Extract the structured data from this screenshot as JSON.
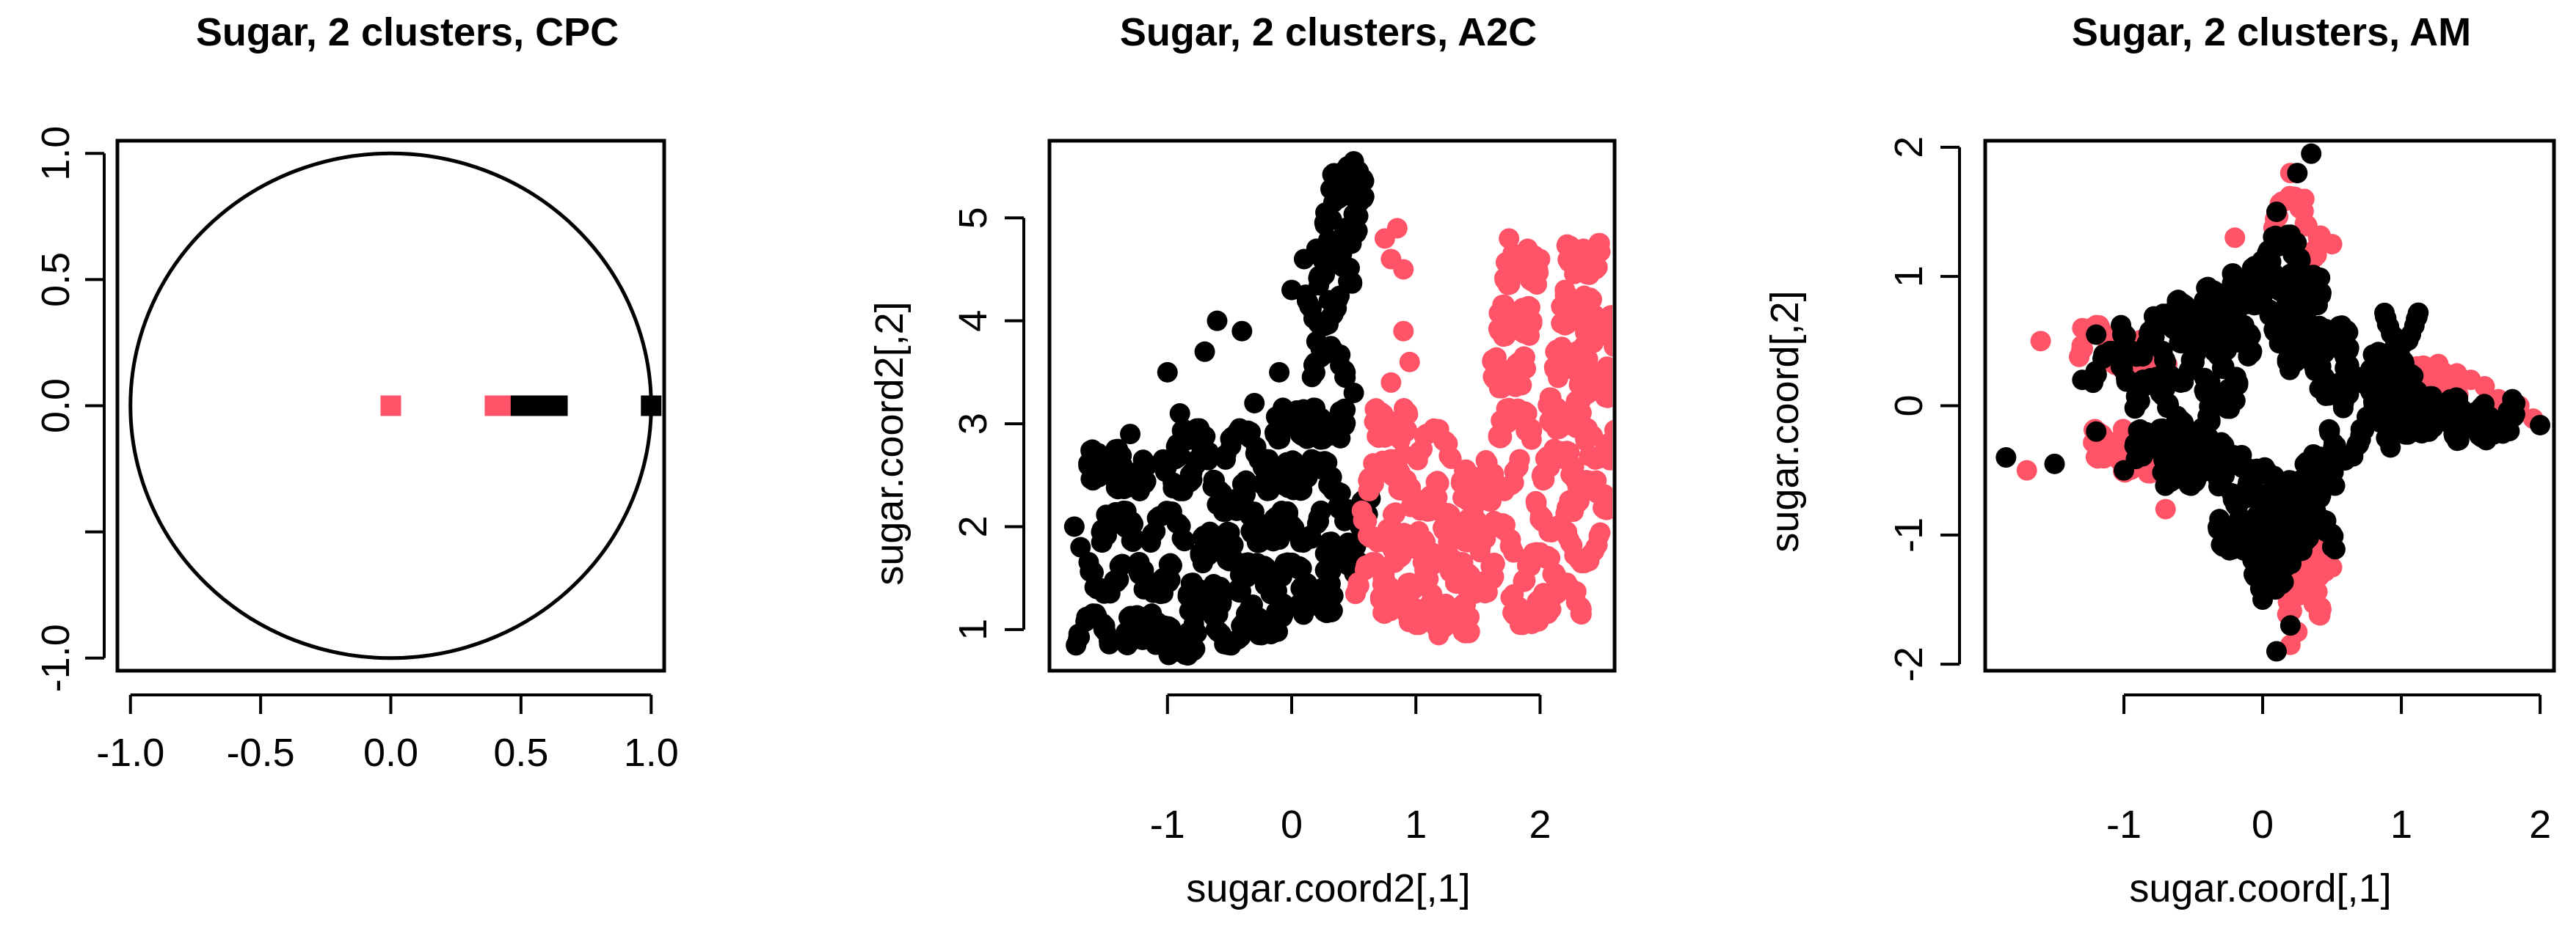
{
  "colors": {
    "cluster1": "#FF5468",
    "cluster2": "#000000"
  },
  "chart_data": [
    {
      "type": "scatter",
      "title": "Sugar, 2 clusters, CPC",
      "xlabel": "",
      "ylabel": "",
      "xlim": [
        -1.05,
        1.05
      ],
      "ylim": [
        -1.05,
        1.05
      ],
      "xticks": [
        -1.0,
        -0.5,
        0.0,
        0.5,
        1.0
      ],
      "xtick_labels": [
        "-1.0",
        "-0.5",
        "0.0",
        "0.5",
        "1.0"
      ],
      "yticks": [
        -1.0,
        -0.5,
        0.0,
        0.5,
        1.0
      ],
      "ytick_labels": [
        "-1.0",
        "",
        "0.0",
        "0.5",
        "1.0"
      ],
      "grid": false,
      "unit_circle": true,
      "series": [
        {
          "color": "#FF5468",
          "marker": "square",
          "points": [
            [
              0.0,
              0.0
            ]
          ],
          "dense": [
            [
              0.4,
              0.0
            ],
            [
              0.42,
              0.0
            ],
            [
              0.44,
              0.0
            ],
            [
              0.46,
              0.0
            ],
            [
              0.48,
              0.0
            ],
            [
              0.5,
              0.0
            ]
          ]
        },
        {
          "color": "#000000",
          "marker": "square",
          "points": [
            [
              1.0,
              0.0
            ]
          ],
          "dense": [
            [
              0.5,
              0.0
            ],
            [
              0.52,
              0.0
            ],
            [
              0.54,
              0.0
            ],
            [
              0.56,
              0.0
            ],
            [
              0.58,
              0.0
            ],
            [
              0.6,
              0.0
            ],
            [
              0.62,
              0.0
            ],
            [
              0.64,
              0.0
            ]
          ]
        }
      ]
    },
    {
      "type": "scatter",
      "title": "Sugar, 2 clusters, A2C",
      "xlabel": "sugar.coord2[,1]",
      "ylabel": "sugar.coord2[,2]",
      "xlim": [
        -1.95,
        2.6
      ],
      "ylim": [
        0.6,
        5.75
      ],
      "xticks": [
        -1,
        0,
        1,
        2
      ],
      "xtick_labels": [
        "-1",
        "0",
        "1",
        "2"
      ],
      "yticks": [
        1,
        2,
        3,
        4,
        5
      ],
      "ytick_labels": [
        "1",
        "2",
        "3",
        "4",
        "5"
      ],
      "grid": false,
      "series": [
        {
          "color": "#000000",
          "marker": "circle",
          "points": [
            [
              -1.75,
              2.0
            ],
            [
              -1.6,
              2.45
            ],
            [
              -1.5,
              2.6
            ],
            [
              -1.7,
              1.8
            ],
            [
              -1.2,
              0.9
            ],
            [
              -0.8,
              0.8
            ],
            [
              -1.0,
              3.5
            ],
            [
              -0.7,
              3.7
            ],
            [
              -0.6,
              4.0
            ],
            [
              -0.4,
              3.9
            ],
            [
              -0.3,
              3.2
            ],
            [
              -0.1,
              3.5
            ],
            [
              0.0,
              4.3
            ],
            [
              0.1,
              4.6
            ],
            [
              0.2,
              4.7
            ],
            [
              0.3,
              5.0
            ],
            [
              0.35,
              5.2
            ],
            [
              0.4,
              5.4
            ],
            [
              0.45,
              5.5
            ],
            [
              0.5,
              5.55
            ],
            [
              0.3,
              4.2
            ],
            [
              0.2,
              3.8
            ],
            [
              0.1,
              3.0
            ],
            [
              0.5,
              3.3
            ],
            [
              0.55,
              2.0
            ],
            [
              0.55,
              1.6
            ],
            [
              -1.3,
              2.9
            ],
            [
              -0.9,
              3.1
            ]
          ],
          "dense": [
            [
              -1.6,
              1.0
            ],
            [
              -1.5,
              1.5
            ],
            [
              -1.4,
              2.0
            ],
            [
              -1.3,
              2.5
            ],
            [
              -1.5,
              2.6
            ],
            [
              -1.2,
              1.0
            ],
            [
              -1.1,
              1.5
            ],
            [
              -1.0,
              2.0
            ],
            [
              -0.9,
              2.5
            ],
            [
              -0.8,
              2.8
            ],
            [
              -0.9,
              0.9
            ],
            [
              -0.7,
              1.3
            ],
            [
              -0.6,
              1.8
            ],
            [
              -0.5,
              2.3
            ],
            [
              -0.4,
              2.8
            ],
            [
              -0.5,
              1.0
            ],
            [
              -0.3,
              1.5
            ],
            [
              -0.2,
              2.0
            ],
            [
              -0.1,
              2.5
            ],
            [
              0.0,
              3.0
            ],
            [
              -0.2,
              1.1
            ],
            [
              0.0,
              1.5
            ],
            [
              0.1,
              2.0
            ],
            [
              0.2,
              2.5
            ],
            [
              0.3,
              3.0
            ],
            [
              0.2,
              1.3
            ],
            [
              0.4,
              1.7
            ],
            [
              0.5,
              2.2
            ],
            [
              0.3,
              3.6
            ],
            [
              0.25,
              4.1
            ],
            [
              0.35,
              4.5
            ],
            [
              0.4,
              4.9
            ],
            [
              0.45,
              5.3
            ]
          ]
        },
        {
          "color": "#FF5468",
          "marker": "circle",
          "points": [
            [
              0.75,
              4.8
            ],
            [
              0.8,
              4.6
            ],
            [
              0.85,
              4.9
            ],
            [
              0.9,
              4.5
            ],
            [
              0.8,
              3.4
            ],
            [
              0.85,
              3.0
            ],
            [
              0.95,
              3.6
            ],
            [
              0.9,
              3.9
            ],
            [
              0.9,
              2.7
            ],
            [
              1.75,
              4.8
            ],
            [
              1.9,
              4.7
            ],
            [
              2.0,
              4.6
            ],
            [
              2.35,
              4.7
            ],
            [
              2.4,
              4.5
            ],
            [
              2.2,
              4.3
            ]
          ],
          "dense": [
            [
              0.65,
              1.5
            ],
            [
              0.7,
              2.0
            ],
            [
              0.75,
              2.5
            ],
            [
              0.8,
              3.0
            ],
            [
              0.85,
              1.3
            ],
            [
              0.95,
              1.8
            ],
            [
              1.05,
              2.3
            ],
            [
              1.15,
              2.8
            ],
            [
              1.0,
              1.2
            ],
            [
              1.2,
              1.6
            ],
            [
              1.35,
              2.0
            ],
            [
              1.5,
              2.4
            ],
            [
              1.3,
              1.1
            ],
            [
              1.5,
              1.5
            ],
            [
              1.65,
              1.9
            ],
            [
              1.7,
              2.5
            ],
            [
              1.8,
              3.0
            ],
            [
              1.75,
              3.5
            ],
            [
              1.8,
              4.0
            ],
            [
              1.85,
              4.5
            ],
            [
              1.9,
              1.2
            ],
            [
              2.0,
              1.6
            ],
            [
              2.1,
              2.1
            ],
            [
              2.15,
              2.6
            ],
            [
              2.2,
              3.1
            ],
            [
              2.25,
              3.6
            ],
            [
              2.3,
              4.1
            ],
            [
              2.35,
              4.6
            ],
            [
              2.2,
              1.3
            ],
            [
              2.35,
              1.8
            ],
            [
              2.4,
              2.3
            ],
            [
              2.5,
              2.8
            ],
            [
              2.45,
              3.4
            ],
            [
              2.5,
              3.9
            ]
          ]
        }
      ]
    },
    {
      "type": "scatter",
      "title": "Sugar, 2 clusters, AM",
      "xlabel": "sugar.coord[,1]",
      "ylabel": "sugar.coord[,2]",
      "xlim": [
        -2.0,
        2.1
      ],
      "ylim": [
        -2.05,
        2.05
      ],
      "xticks": [
        -1,
        0,
        1,
        2
      ],
      "xtick_labels": [
        "-1",
        "0",
        "1",
        "2"
      ],
      "yticks": [
        -2,
        -1,
        0,
        1,
        2
      ],
      "ytick_labels": [
        "-2",
        "-1",
        "0",
        "1",
        "2"
      ],
      "grid": false,
      "series": [
        {
          "color": "#FF5468",
          "marker": "circle",
          "points": [
            [
              -1.6,
              0.5
            ],
            [
              -1.7,
              -0.5
            ],
            [
              -1.3,
              0.6
            ],
            [
              0.2,
              1.8
            ],
            [
              0.3,
              1.6
            ],
            [
              0.4,
              1.3
            ],
            [
              0.5,
              1.25
            ],
            [
              -0.2,
              1.3
            ],
            [
              1.4,
              0.25
            ],
            [
              1.5,
              0.2
            ],
            [
              1.6,
              0.15
            ],
            [
              1.7,
              0.05
            ],
            [
              1.85,
              0.0
            ],
            [
              1.95,
              -0.1
            ],
            [
              0.25,
              -1.75
            ],
            [
              0.2,
              -1.85
            ],
            [
              0.4,
              -1.3
            ],
            [
              0.5,
              -1.25
            ],
            [
              -1.0,
              -0.4
            ],
            [
              -0.7,
              -0.8
            ]
          ],
          "dense": [
            [
              -1.2,
              0.5
            ],
            [
              -1.0,
              0.4
            ],
            [
              -0.8,
              0.3
            ],
            [
              -1.1,
              -0.3
            ],
            [
              -0.9,
              -0.4
            ],
            [
              1.2,
              0.2
            ],
            [
              1.3,
              0.1
            ],
            [
              0.2,
              1.5
            ],
            [
              0.3,
              1.2
            ],
            [
              0.3,
              -1.5
            ],
            [
              0.35,
              -1.2
            ]
          ]
        },
        {
          "color": "#000000",
          "marker": "circle",
          "points": [
            [
              -1.85,
              -0.4
            ],
            [
              -1.5,
              -0.45
            ],
            [
              -1.2,
              0.55
            ],
            [
              -1.3,
              0.2
            ],
            [
              0.35,
              1.95
            ],
            [
              0.25,
              1.8
            ],
            [
              0.1,
              1.5
            ],
            [
              2.0,
              -0.15
            ],
            [
              1.8,
              0.05
            ],
            [
              0.1,
              -1.9
            ],
            [
              0.2,
              -1.7
            ],
            [
              0.0,
              -1.5
            ],
            [
              -1.2,
              -0.2
            ],
            [
              -1.0,
              -0.5
            ],
            [
              1.2,
              -0.2
            ]
          ],
          "dense": [
            [
              -1.1,
              0.3
            ],
            [
              -0.9,
              0.5
            ],
            [
              -0.7,
              0.6
            ],
            [
              -0.5,
              0.7
            ],
            [
              -0.3,
              0.8
            ],
            [
              -0.2,
              0.5
            ],
            [
              -0.1,
              0.9
            ],
            [
              0.0,
              1.0
            ],
            [
              0.1,
              0.8
            ],
            [
              0.15,
              1.2
            ],
            [
              0.2,
              0.6
            ],
            [
              0.3,
              0.9
            ],
            [
              0.3,
              0.4
            ],
            [
              0.5,
              0.2
            ],
            [
              0.7,
              0.1
            ],
            [
              0.9,
              0.0
            ],
            [
              1.0,
              0.15
            ],
            [
              1.1,
              -0.1
            ],
            [
              1.3,
              -0.05
            ],
            [
              1.5,
              -0.15
            ],
            [
              1.7,
              -0.1
            ],
            [
              0.8,
              -0.2
            ],
            [
              0.6,
              -0.3
            ],
            [
              0.4,
              -0.5
            ],
            [
              0.3,
              -0.7
            ],
            [
              0.2,
              -0.9
            ],
            [
              0.1,
              -1.1
            ],
            [
              0.05,
              -1.3
            ],
            [
              0.0,
              -0.6
            ],
            [
              -0.1,
              -0.8
            ],
            [
              -0.2,
              -0.5
            ],
            [
              -0.4,
              -0.4
            ],
            [
              -0.6,
              -0.5
            ],
            [
              -0.8,
              -0.3
            ],
            [
              -0.5,
              -0.2
            ],
            [
              -0.4,
              0.4
            ],
            [
              -0.6,
              0.3
            ],
            [
              -0.8,
              0.1
            ],
            [
              -0.3,
              0.1
            ],
            [
              0.5,
              0.5
            ],
            [
              0.9,
              0.3
            ],
            [
              -0.2,
              -1.0
            ],
            [
              0.4,
              -1.0
            ],
            [
              1.0,
              0.6
            ]
          ]
        }
      ]
    }
  ]
}
